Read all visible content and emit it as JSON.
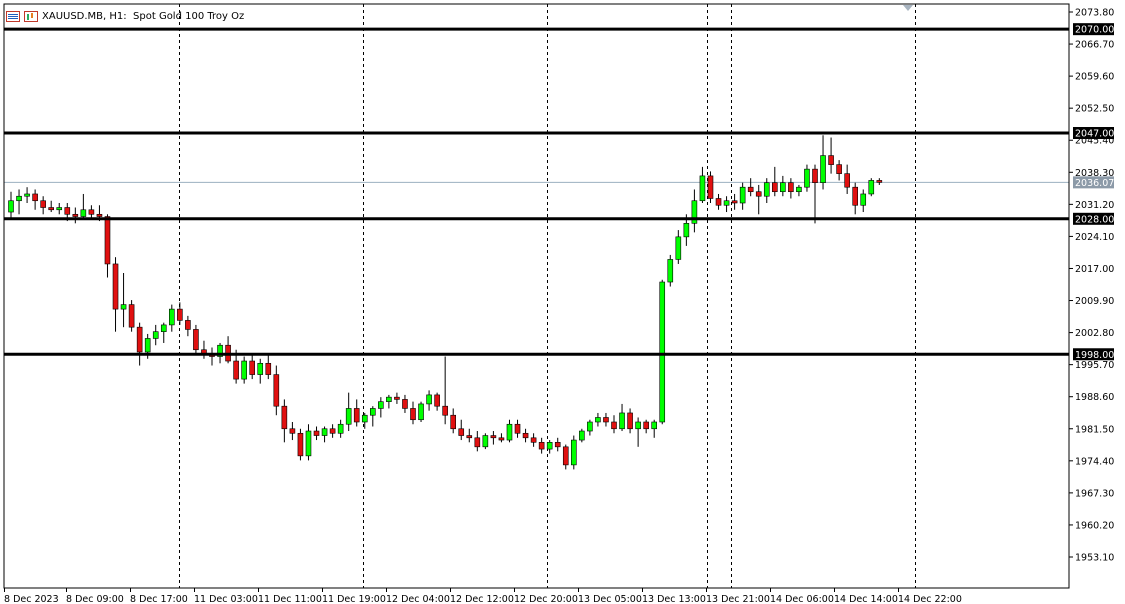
{
  "header": {
    "symbol": "XAUUSD.MB",
    "timeframe": "H1:",
    "description": "Spot Gold 100 Troy Oz"
  },
  "colors": {
    "bull": "#00ff00",
    "bear": "#e01010",
    "level_line": "#000000",
    "current_price_line": "#9cb0c0",
    "current_price_badge": "#8c9aa8"
  },
  "chart_data": {
    "type": "candlestick",
    "symbol": "XAUUSD.MB",
    "timeframe": "H1",
    "ylim": [
      1948,
      2076
    ],
    "y_ticks": [
      "2073.80",
      "2066.70",
      "2059.60",
      "2052.50",
      "2045.40",
      "2038.30",
      "2031.20",
      "2024.10",
      "2017.00",
      "2009.90",
      "2002.80",
      "1995.70",
      "1988.60",
      "1981.50",
      "1974.40",
      "1967.30",
      "1960.20",
      "1953.10"
    ],
    "x_labels": [
      "8 Dec 2023",
      "8 Dec 09:00",
      "8 Dec 17:00",
      "11 Dec 03:00",
      "11 Dec 11:00",
      "11 Dec 19:00",
      "12 Dec 04:00",
      "12 Dec 12:00",
      "12 Dec 20:00",
      "13 Dec 05:00",
      "13 Dec 13:00",
      "13 Dec 21:00",
      "14 Dec 06:00",
      "14 Dec 14:00",
      "14 Dec 22:00"
    ],
    "horizontal_levels": [
      {
        "label": "2070.00",
        "value": 2070.0
      },
      {
        "label": "2047.00",
        "value": 2047.0
      },
      {
        "label": "2028.00",
        "value": 2028.0
      },
      {
        "label": "1998.00",
        "value": 1998.0
      }
    ],
    "current_price": {
      "label": "2036.07",
      "value": 2036.07
    },
    "candles": [
      {
        "o": 2029.5,
        "h": 2034.0,
        "l": 2028.0,
        "c": 2032.0
      },
      {
        "o": 2032.0,
        "h": 2034.5,
        "l": 2029.0,
        "c": 2033.0
      },
      {
        "o": 2033.0,
        "h": 2035.0,
        "l": 2031.5,
        "c": 2033.5
      },
      {
        "o": 2033.5,
        "h": 2034.5,
        "l": 2030.0,
        "c": 2032.0
      },
      {
        "o": 2032.0,
        "h": 2033.0,
        "l": 2029.0,
        "c": 2030.5
      },
      {
        "o": 2030.5,
        "h": 2032.0,
        "l": 2029.5,
        "c": 2030.0
      },
      {
        "o": 2030.0,
        "h": 2031.5,
        "l": 2029.0,
        "c": 2030.5
      },
      {
        "o": 2030.5,
        "h": 2031.5,
        "l": 2027.5,
        "c": 2029.0
      },
      {
        "o": 2029.0,
        "h": 2030.5,
        "l": 2027.0,
        "c": 2028.5
      },
      {
        "o": 2028.5,
        "h": 2033.5,
        "l": 2028.0,
        "c": 2030.0
      },
      {
        "o": 2030.0,
        "h": 2031.0,
        "l": 2028.0,
        "c": 2029.0
      },
      {
        "o": 2029.0,
        "h": 2031.0,
        "l": 2027.5,
        "c": 2028.5
      },
      {
        "o": 2028.5,
        "h": 2029.0,
        "l": 2015.0,
        "c": 2018.0
      },
      {
        "o": 2018.0,
        "h": 2019.5,
        "l": 2003.0,
        "c": 2008.0
      },
      {
        "o": 2008.0,
        "h": 2016.0,
        "l": 2004.0,
        "c": 2009.0
      },
      {
        "o": 2009.0,
        "h": 2010.0,
        "l": 2003.0,
        "c": 2004.0
      },
      {
        "o": 2004.0,
        "h": 2005.0,
        "l": 1995.5,
        "c": 1998.5
      },
      {
        "o": 1998.5,
        "h": 2002.5,
        "l": 1997.0,
        "c": 2001.5
      },
      {
        "o": 2001.5,
        "h": 2004.5,
        "l": 2000.0,
        "c": 2003.0
      },
      {
        "o": 2003.0,
        "h": 2005.0,
        "l": 2000.5,
        "c": 2004.5
      },
      {
        "o": 2004.5,
        "h": 2009.0,
        "l": 2003.0,
        "c": 2008.0
      },
      {
        "o": 2008.0,
        "h": 2009.5,
        "l": 2004.5,
        "c": 2005.5
      },
      {
        "o": 2005.5,
        "h": 2006.5,
        "l": 2002.0,
        "c": 2003.5
      },
      {
        "o": 2003.5,
        "h": 2004.5,
        "l": 1998.0,
        "c": 1999.0
      },
      {
        "o": 1999.0,
        "h": 2001.0,
        "l": 1997.0,
        "c": 1998.0
      },
      {
        "o": 1998.0,
        "h": 1999.5,
        "l": 1995.5,
        "c": 1997.5
      },
      {
        "o": 1997.5,
        "h": 2000.5,
        "l": 1996.0,
        "c": 2000.0
      },
      {
        "o": 2000.0,
        "h": 2002.0,
        "l": 1996.0,
        "c": 1996.5
      },
      {
        "o": 1996.5,
        "h": 1999.0,
        "l": 1991.5,
        "c": 1992.5
      },
      {
        "o": 1992.5,
        "h": 1997.5,
        "l": 1991.5,
        "c": 1996.5
      },
      {
        "o": 1996.5,
        "h": 1998.0,
        "l": 1992.5,
        "c": 1993.5
      },
      {
        "o": 1993.5,
        "h": 1997.0,
        "l": 1991.5,
        "c": 1996.0
      },
      {
        "o": 1996.0,
        "h": 1998.0,
        "l": 1992.5,
        "c": 1993.5
      },
      {
        "o": 1993.5,
        "h": 1995.5,
        "l": 1984.5,
        "c": 1986.5
      },
      {
        "o": 1986.5,
        "h": 1988.0,
        "l": 1978.5,
        "c": 1981.5
      },
      {
        "o": 1981.5,
        "h": 1983.0,
        "l": 1979.0,
        "c": 1980.5
      },
      {
        "o": 1980.5,
        "h": 1981.5,
        "l": 1974.5,
        "c": 1975.5
      },
      {
        "o": 1975.5,
        "h": 1982.5,
        "l": 1974.5,
        "c": 1981.0
      },
      {
        "o": 1981.0,
        "h": 1982.0,
        "l": 1979.0,
        "c": 1980.0
      },
      {
        "o": 1980.0,
        "h": 1982.0,
        "l": 1978.5,
        "c": 1981.5
      },
      {
        "o": 1981.5,
        "h": 1982.5,
        "l": 1979.5,
        "c": 1980.5
      },
      {
        "o": 1980.5,
        "h": 1983.5,
        "l": 1979.5,
        "c": 1982.5
      },
      {
        "o": 1982.5,
        "h": 1989.5,
        "l": 1981.0,
        "c": 1986.0
      },
      {
        "o": 1986.0,
        "h": 1988.0,
        "l": 1982.0,
        "c": 1983.0
      },
      {
        "o": 1983.0,
        "h": 1985.0,
        "l": 1981.5,
        "c": 1984.5
      },
      {
        "o": 1984.5,
        "h": 1986.5,
        "l": 1982.0,
        "c": 1986.0
      },
      {
        "o": 1986.0,
        "h": 1988.5,
        "l": 1984.0,
        "c": 1987.5
      },
      {
        "o": 1987.5,
        "h": 1989.0,
        "l": 1986.0,
        "c": 1988.5
      },
      {
        "o": 1988.5,
        "h": 1989.5,
        "l": 1987.0,
        "c": 1988.0
      },
      {
        "o": 1988.0,
        "h": 1989.0,
        "l": 1985.0,
        "c": 1986.0
      },
      {
        "o": 1986.0,
        "h": 1987.5,
        "l": 1982.5,
        "c": 1983.5
      },
      {
        "o": 1983.5,
        "h": 1987.5,
        "l": 1983.0,
        "c": 1987.0
      },
      {
        "o": 1987.0,
        "h": 1990.0,
        "l": 1985.5,
        "c": 1989.0
      },
      {
        "o": 1989.0,
        "h": 1989.5,
        "l": 1985.5,
        "c": 1986.5
      },
      {
        "o": 1986.5,
        "h": 1997.5,
        "l": 1982.5,
        "c": 1984.5
      },
      {
        "o": 1984.5,
        "h": 1986.0,
        "l": 1980.5,
        "c": 1981.5
      },
      {
        "o": 1981.5,
        "h": 1983.5,
        "l": 1979.0,
        "c": 1980.0
      },
      {
        "o": 1980.0,
        "h": 1981.5,
        "l": 1978.5,
        "c": 1979.5
      },
      {
        "o": 1979.5,
        "h": 1981.0,
        "l": 1976.5,
        "c": 1977.5
      },
      {
        "o": 1977.5,
        "h": 1980.5,
        "l": 1977.0,
        "c": 1980.0
      },
      {
        "o": 1980.0,
        "h": 1981.0,
        "l": 1978.0,
        "c": 1979.5
      },
      {
        "o": 1979.5,
        "h": 1980.5,
        "l": 1978.5,
        "c": 1979.0
      },
      {
        "o": 1979.0,
        "h": 1983.5,
        "l": 1978.5,
        "c": 1982.5
      },
      {
        "o": 1982.5,
        "h": 1983.5,
        "l": 1979.5,
        "c": 1980.5
      },
      {
        "o": 1980.5,
        "h": 1981.5,
        "l": 1978.5,
        "c": 1979.5
      },
      {
        "o": 1979.5,
        "h": 1980.5,
        "l": 1977.5,
        "c": 1978.5
      },
      {
        "o": 1978.5,
        "h": 1979.5,
        "l": 1976.0,
        "c": 1977.0
      },
      {
        "o": 1977.0,
        "h": 1979.0,
        "l": 1976.0,
        "c": 1978.5
      },
      {
        "o": 1978.5,
        "h": 1979.5,
        "l": 1976.5,
        "c": 1977.5
      },
      {
        "o": 1977.5,
        "h": 1978.0,
        "l": 1972.5,
        "c": 1973.5
      },
      {
        "o": 1973.5,
        "h": 1980.0,
        "l": 1972.5,
        "c": 1979.0
      },
      {
        "o": 1979.0,
        "h": 1981.5,
        "l": 1978.5,
        "c": 1981.0
      },
      {
        "o": 1981.0,
        "h": 1983.5,
        "l": 1980.0,
        "c": 1983.0
      },
      {
        "o": 1983.0,
        "h": 1985.0,
        "l": 1982.0,
        "c": 1984.0
      },
      {
        "o": 1984.0,
        "h": 1985.0,
        "l": 1982.0,
        "c": 1983.0
      },
      {
        "o": 1983.0,
        "h": 1984.5,
        "l": 1980.5,
        "c": 1981.5
      },
      {
        "o": 1981.5,
        "h": 1987.0,
        "l": 1981.0,
        "c": 1985.0
      },
      {
        "o": 1985.0,
        "h": 1986.0,
        "l": 1980.5,
        "c": 1981.5
      },
      {
        "o": 1981.5,
        "h": 1984.0,
        "l": 1977.5,
        "c": 1983.0
      },
      {
        "o": 1983.0,
        "h": 1983.5,
        "l": 1980.5,
        "c": 1981.5
      },
      {
        "o": 1981.5,
        "h": 1983.5,
        "l": 1979.5,
        "c": 1983.0
      },
      {
        "o": 1983.0,
        "h": 2014.5,
        "l": 1982.5,
        "c": 2014.0
      },
      {
        "o": 2014.0,
        "h": 2020.0,
        "l": 2013.0,
        "c": 2019.0
      },
      {
        "o": 2019.0,
        "h": 2025.5,
        "l": 2018.0,
        "c": 2024.0
      },
      {
        "o": 2024.0,
        "h": 2029.0,
        "l": 2022.0,
        "c": 2027.0
      },
      {
        "o": 2027.0,
        "h": 2034.5,
        "l": 2025.0,
        "c": 2032.0
      },
      {
        "o": 2032.0,
        "h": 2039.5,
        "l": 2031.5,
        "c": 2037.5
      },
      {
        "o": 2037.5,
        "h": 2038.5,
        "l": 2031.5,
        "c": 2032.5
      },
      {
        "o": 2032.5,
        "h": 2033.5,
        "l": 2030.0,
        "c": 2031.0
      },
      {
        "o": 2031.0,
        "h": 2033.0,
        "l": 2029.5,
        "c": 2032.0
      },
      {
        "o": 2032.0,
        "h": 2033.5,
        "l": 2030.0,
        "c": 2031.5
      },
      {
        "o": 2031.5,
        "h": 2036.0,
        "l": 2030.0,
        "c": 2035.0
      },
      {
        "o": 2035.0,
        "h": 2037.0,
        "l": 2033.0,
        "c": 2034.0
      },
      {
        "o": 2034.0,
        "h": 2035.5,
        "l": 2029.0,
        "c": 2033.0
      },
      {
        "o": 2033.0,
        "h": 2037.0,
        "l": 2031.5,
        "c": 2036.0
      },
      {
        "o": 2036.0,
        "h": 2039.5,
        "l": 2033.0,
        "c": 2034.0
      },
      {
        "o": 2034.0,
        "h": 2037.5,
        "l": 2033.0,
        "c": 2036.0
      },
      {
        "o": 2036.0,
        "h": 2037.0,
        "l": 2032.5,
        "c": 2034.0
      },
      {
        "o": 2034.0,
        "h": 2035.5,
        "l": 2033.0,
        "c": 2035.0
      },
      {
        "o": 2035.0,
        "h": 2040.0,
        "l": 2034.0,
        "c": 2039.0
      },
      {
        "o": 2039.0,
        "h": 2040.0,
        "l": 2027.0,
        "c": 2036.0
      },
      {
        "o": 2036.0,
        "h": 2046.5,
        "l": 2034.5,
        "c": 2042.0
      },
      {
        "o": 2042.0,
        "h": 2046.0,
        "l": 2038.0,
        "c": 2040.0
      },
      {
        "o": 2040.0,
        "h": 2041.0,
        "l": 2036.5,
        "c": 2038.0
      },
      {
        "o": 2038.0,
        "h": 2040.0,
        "l": 2033.5,
        "c": 2035.0
      },
      {
        "o": 2035.0,
        "h": 2036.0,
        "l": 2029.0,
        "c": 2031.0
      },
      {
        "o": 2031.0,
        "h": 2034.5,
        "l": 2029.5,
        "c": 2033.5
      },
      {
        "o": 2033.5,
        "h": 2037.0,
        "l": 2033.0,
        "c": 2036.5
      },
      {
        "o": 2036.5,
        "h": 2037.0,
        "l": 2035.5,
        "c": 2036.07
      }
    ]
  }
}
